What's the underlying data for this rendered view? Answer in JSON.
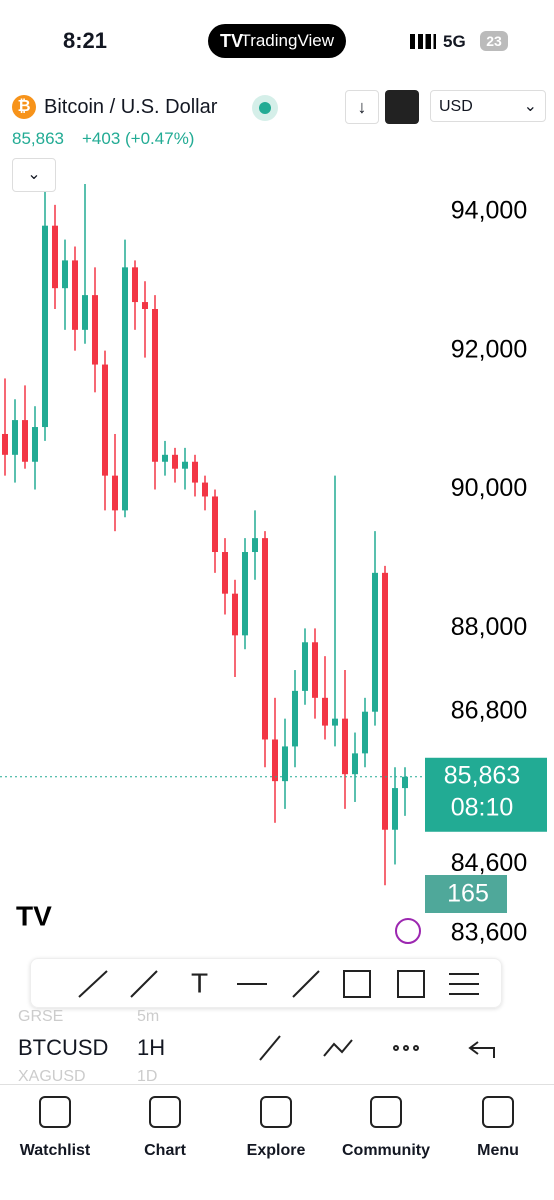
{
  "status_bar": {
    "time": "8:21",
    "app": "TradingView",
    "network": "5G",
    "battery": "23"
  },
  "header": {
    "symbol_name": "Bitcoin / U.S. Dollar",
    "price": "85,863",
    "change": "+403 (+0.47%)",
    "currency": "USD"
  },
  "chart_data": {
    "type": "candlestick",
    "ylim": [
      83440,
      94530
    ],
    "yticks": [
      {
        "value": 94000,
        "label": "94,000"
      },
      {
        "value": 92000,
        "label": "92,000"
      },
      {
        "value": 90000,
        "label": "90,000"
      },
      {
        "value": 88000,
        "label": "88,000"
      },
      {
        "value": 86800,
        "label": "86,800"
      },
      {
        "value": 84600,
        "label": "84,600"
      },
      {
        "value": 83600,
        "label": "83,600"
      }
    ],
    "grid": false,
    "up_color": "#22ab94",
    "down_color": "#f23645",
    "open": [
      90800,
      90500,
      91000,
      90400,
      90900,
      93800,
      92900,
      93300,
      92300,
      92800,
      91800,
      90200,
      89700,
      93200,
      92700,
      92600,
      90400,
      90500,
      90300,
      90400,
      90100,
      89900,
      89100,
      88500,
      87900,
      89100,
      89300,
      86400,
      85800,
      86300,
      87100,
      87800,
      87000,
      86600,
      86700,
      85900,
      86200,
      86800,
      88800,
      85100,
      85700
    ],
    "high": [
      91600,
      91300,
      91500,
      91200,
      94300,
      94100,
      93600,
      93500,
      94400,
      93200,
      92000,
      90800,
      93600,
      93300,
      93000,
      92800,
      90700,
      90600,
      90600,
      90500,
      90200,
      90000,
      89300,
      88700,
      89300,
      89700,
      89400,
      87000,
      86700,
      87400,
      88000,
      88000,
      87600,
      90200,
      87400,
      86500,
      87000,
      89400,
      88900,
      86000,
      86000
    ],
    "low": [
      90200,
      90100,
      90300,
      90000,
      90700,
      92600,
      92300,
      92000,
      92100,
      91400,
      89700,
      89400,
      89600,
      92300,
      91900,
      90000,
      90200,
      90100,
      90000,
      89900,
      89700,
      88800,
      88200,
      87300,
      87700,
      88700,
      86000,
      85200,
      85400,
      86000,
      86900,
      86700,
      86400,
      86300,
      85400,
      85500,
      86000,
      86600,
      84300,
      84600,
      85300
    ],
    "close": [
      90500,
      91000,
      90400,
      90900,
      93800,
      92900,
      93300,
      92300,
      92800,
      91800,
      90200,
      89700,
      93200,
      92700,
      92600,
      90400,
      90500,
      90300,
      90400,
      90100,
      89900,
      89100,
      88500,
      87900,
      89100,
      89300,
      86400,
      85800,
      86300,
      87100,
      87800,
      87000,
      86600,
      86700,
      85900,
      86200,
      86800,
      88800,
      85100,
      85700,
      85863
    ],
    "last_price": {
      "value": 85863,
      "label": "85,863"
    },
    "countdown": "08:10",
    "last_volume": 165
  },
  "toolbar": {
    "row_above": [
      "GRSE",
      "5m"
    ],
    "symbol": "BTCUSD",
    "interval": "1H",
    "row_below": [
      "XAGUSD",
      "1D"
    ]
  },
  "nav": [
    "Watchlist",
    "Chart",
    "Explore",
    "Community",
    "Menu"
  ]
}
